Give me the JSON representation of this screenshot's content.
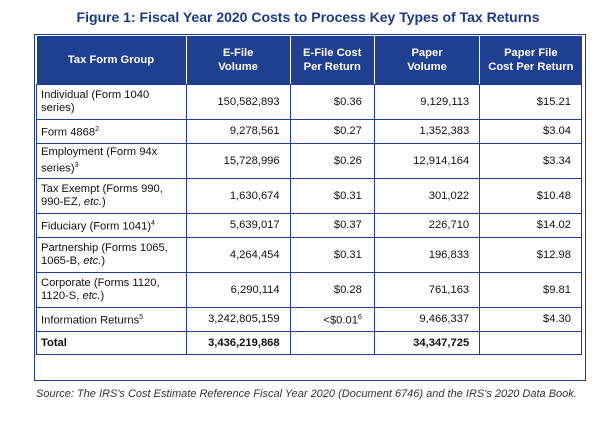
{
  "title": "Figure 1:  Fiscal Year 2020 Costs to Process Key Types of Tax Returns",
  "headers": [
    "Tax Form Group",
    "E-File Volume",
    "E-File Cost Per Return",
    "Paper Volume",
    "Paper File Cost Per Return"
  ],
  "rows": [
    {
      "group": "Individual (Form 1040 series)",
      "sup": "",
      "efile_volume": "150,582,893",
      "efile_cost": "$0.36",
      "paper_volume": "9,129,113",
      "paper_cost": "$15.21"
    },
    {
      "group": "Form 4868",
      "sup": "2",
      "efile_volume": "9,278,561",
      "efile_cost": "$0.27",
      "paper_volume": "1,352,383",
      "paper_cost": "$3.04"
    },
    {
      "group": "Employment (Form 94x series)",
      "sup": "3",
      "efile_volume": "15,728,996",
      "efile_cost": "$0.26",
      "paper_volume": "12,914,164",
      "paper_cost": "$3.34"
    },
    {
      "group": "Tax Exempt (Forms 990, 990-EZ, etc.)",
      "sup": "",
      "efile_volume": "1,630,674",
      "efile_cost": "$0.31",
      "paper_volume": "301,022",
      "paper_cost": "$10.48"
    },
    {
      "group": "Fiduciary (Form 1041)",
      "sup": "4",
      "efile_volume": "5,639,017",
      "efile_cost": "$0.37",
      "paper_volume": "226,710",
      "paper_cost": "$14.02"
    },
    {
      "group": "Partnership (Forms 1065, 1065-B, etc.)",
      "sup": "",
      "efile_volume": "4,264,454",
      "efile_cost": "$0.31",
      "paper_volume": "196,833",
      "paper_cost": "$12.98"
    },
    {
      "group": "Corporate (Forms 1120, 1120-S, etc.)",
      "sup": "",
      "efile_volume": "6,290,114",
      "efile_cost": "$0.28",
      "paper_volume": "761,163",
      "paper_cost": "$9.81"
    },
    {
      "group": "Information Returns",
      "sup": "5",
      "efile_volume": "3,242,805,159",
      "efile_cost": "<$0.01",
      "efile_cost_sup": "6",
      "paper_volume": "9,466,337",
      "paper_cost": "$4.30"
    }
  ],
  "total": {
    "label": "Total",
    "efile_volume": "3,436,219,868",
    "paper_volume": "34,347,725"
  },
  "source": "Source:  The IRS's Cost Estimate Reference Fiscal Year 2020 (Document 6746) and the IRS's 2020 Data Book."
}
